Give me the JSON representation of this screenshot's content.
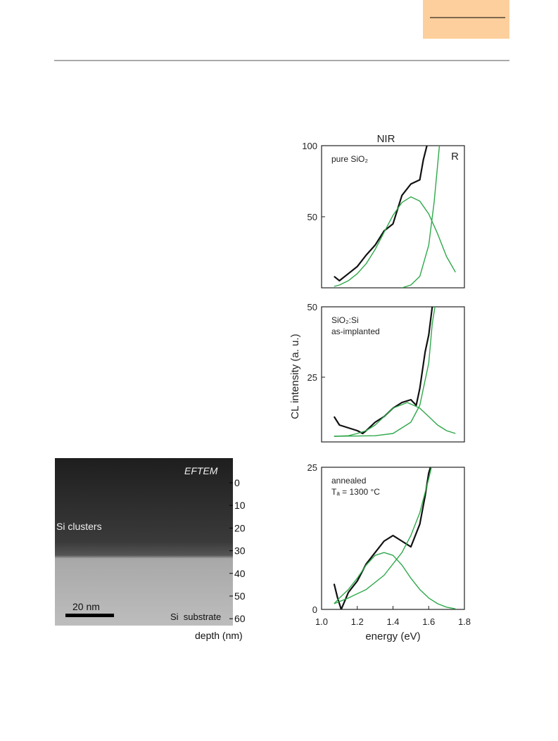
{
  "image": {
    "title": "EFTEM",
    "labels": [
      "Si clusters",
      "Si  substrate"
    ],
    "scale_bar": "20 nm",
    "depth_ticks": [
      0,
      10,
      20,
      30,
      40,
      50,
      60
    ],
    "depth_label": "depth (nm)"
  },
  "chart_data": [
    {
      "type": "line",
      "title": "NIR",
      "annotations": [
        "pure SiO₂",
        "R"
      ],
      "xlim": [
        1.0,
        1.8
      ],
      "ylim": [
        0,
        100
      ],
      "yticks": [
        50,
        100
      ],
      "series": [
        {
          "color": "#111111",
          "x": [
            1.07,
            1.1,
            1.15,
            1.2,
            1.25,
            1.3,
            1.35,
            1.4,
            1.45,
            1.5,
            1.55,
            1.57,
            1.59
          ],
          "values": [
            8,
            5,
            10,
            15,
            23,
            30,
            40,
            45,
            65,
            73,
            76,
            90,
            100
          ]
        },
        {
          "color": "#2ea84a",
          "x": [
            1.07,
            1.1,
            1.15,
            1.2,
            1.25,
            1.3,
            1.35,
            1.4,
            1.45,
            1.5,
            1.55,
            1.6,
            1.65,
            1.7,
            1.75
          ],
          "values": [
            1,
            2,
            5,
            10,
            17,
            27,
            39,
            51,
            60,
            64,
            61,
            52,
            38,
            22,
            11
          ]
        },
        {
          "color": "#2ea84a",
          "x": [
            1.45,
            1.5,
            1.55,
            1.6,
            1.63,
            1.66
          ],
          "values": [
            0,
            2,
            8,
            30,
            60,
            100
          ]
        }
      ]
    },
    {
      "type": "line",
      "ylabel": "CL intensity (a. u.)",
      "annotations": [
        "SiO₂:Si",
        "as-implanted"
      ],
      "xlim": [
        1.0,
        1.8
      ],
      "ylim": [
        2,
        50
      ],
      "yticks": [
        25,
        50
      ],
      "series": [
        {
          "color": "#111111",
          "x": [
            1.07,
            1.1,
            1.15,
            1.2,
            1.23,
            1.25,
            1.3,
            1.35,
            1.4,
            1.45,
            1.5,
            1.53,
            1.55,
            1.58,
            1.6,
            1.62
          ],
          "values": [
            11,
            8,
            7,
            6,
            5,
            6,
            9,
            11,
            14,
            16,
            17,
            15,
            21,
            34,
            40,
            50
          ]
        },
        {
          "color": "#2ea84a",
          "x": [
            1.07,
            1.15,
            1.2,
            1.25,
            1.3,
            1.35,
            1.4,
            1.48,
            1.55,
            1.6,
            1.65,
            1.7,
            1.75
          ],
          "values": [
            4,
            4.2,
            5,
            6,
            8,
            11,
            14,
            16,
            14,
            11,
            8,
            6,
            5
          ]
        },
        {
          "color": "#2ea84a",
          "x": [
            1.07,
            1.3,
            1.4,
            1.5,
            1.55,
            1.6,
            1.62,
            1.635
          ],
          "values": [
            4,
            4.2,
            5,
            9,
            15,
            30,
            44,
            50
          ]
        }
      ]
    },
    {
      "type": "line",
      "xlabel": "energy (eV)",
      "annotations": [
        "annealed",
        "Tₐ = 1300 °C"
      ],
      "xlim": [
        1.0,
        1.8
      ],
      "ylim": [
        0,
        25
      ],
      "yticks": [
        0,
        25
      ],
      "xticks": [
        {
          "value": 1,
          "label": "1.0"
        },
        1.2,
        1.4,
        1.6,
        1.8
      ],
      "series": [
        {
          "color": "#111111",
          "x": [
            1.07,
            1.09,
            1.11,
            1.15,
            1.2,
            1.25,
            1.3,
            1.35,
            1.4,
            1.45,
            1.5,
            1.55,
            1.58,
            1.6,
            1.61
          ],
          "values": [
            4.5,
            2,
            0,
            3,
            5,
            8,
            10,
            12,
            13,
            12,
            11,
            15,
            20,
            24,
            25
          ]
        },
        {
          "color": "#2ea84a",
          "x": [
            1.07,
            1.1,
            1.15,
            1.2,
            1.25,
            1.3,
            1.35,
            1.4,
            1.45,
            1.5,
            1.55,
            1.6,
            1.65,
            1.7,
            1.75
          ],
          "values": [
            1,
            2,
            3.5,
            5.5,
            7.8,
            9.5,
            10,
            9.5,
            7.8,
            5.5,
            3.5,
            2,
            1,
            0.4,
            0.1
          ]
        },
        {
          "color": "#2ea84a",
          "x": [
            1.07,
            1.15,
            1.25,
            1.35,
            1.45,
            1.5,
            1.55,
            1.6,
            1.615
          ],
          "values": [
            1,
            2,
            3.5,
            6,
            10,
            13,
            17,
            23,
            25
          ]
        }
      ]
    }
  ]
}
